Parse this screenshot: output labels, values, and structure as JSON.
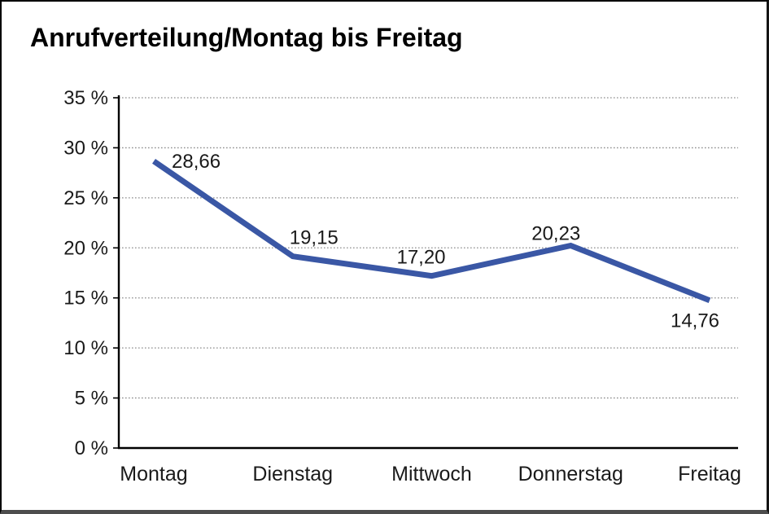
{
  "frame": {
    "background": "#ffffff",
    "border_color": "#000000",
    "bottom_border_color": "#4d4d4d"
  },
  "chart_data": {
    "type": "line",
    "title": "Anrufverteilung/Montag bis Freitag",
    "categories": [
      "Montag",
      "Dienstag",
      "Mittwoch",
      "Donnerstag",
      "Freitag"
    ],
    "series": [
      {
        "name": "Anrufverteilung",
        "values": [
          28.66,
          19.15,
          17.2,
          20.23,
          14.76
        ]
      }
    ],
    "value_labels": [
      "28,66",
      "19,15",
      "17,20",
      "20,23",
      "14,76"
    ],
    "y_tick_values": [
      0,
      5,
      10,
      15,
      20,
      25,
      30,
      35
    ],
    "y_tick_labels": [
      "0 %",
      "5 %",
      "10 %",
      "15 %",
      "20 %",
      "25 %",
      "30 %",
      "35 %"
    ],
    "ylim": [
      0,
      35
    ],
    "xlabel": "",
    "ylabel": "",
    "grid": "horizontal-dotted",
    "legend": "none",
    "line_color": "#3A57A5",
    "axis_color": "#000000",
    "grid_color": "#8c8c8c",
    "text_color": "#1a1a1a"
  }
}
